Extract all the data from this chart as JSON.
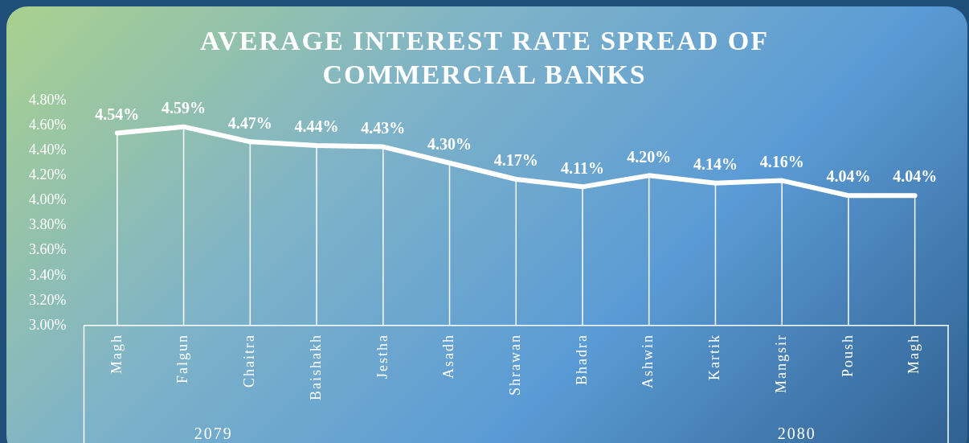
{
  "chart_data": {
    "type": "line",
    "title": "AVERAGE INTEREST RATE SPREAD OF COMMERCIAL BANKS",
    "categories": [
      "Magh",
      "Falgun",
      "Chaitra",
      "Baishakh",
      "Jestha",
      "Asadh",
      "Shrawan",
      "Bhadra",
      "Ashwin",
      "Kartik",
      "Mangsir",
      "Poush",
      "Magh"
    ],
    "values": [
      4.54,
      4.59,
      4.47,
      4.44,
      4.43,
      4.3,
      4.17,
      4.11,
      4.2,
      4.14,
      4.16,
      4.04,
      4.04
    ],
    "value_labels": [
      "4.54%",
      "4.59%",
      "4.47%",
      "4.44%",
      "4.43%",
      "4.30%",
      "4.17%",
      "4.11%",
      "4.20%",
      "4.14%",
      "4.16%",
      "4.04%",
      "4.04%"
    ],
    "color": "#ffffff",
    "ylim": [
      3.0,
      4.8
    ],
    "yticks": [
      {
        "value": 3.0,
        "label": "3.00%"
      },
      {
        "value": 3.2,
        "label": "3.20%"
      },
      {
        "value": 3.4,
        "label": "3.40%"
      },
      {
        "value": 3.6,
        "label": "3.60%"
      },
      {
        "value": 3.8,
        "label": "3.80%"
      },
      {
        "value": 4.0,
        "label": "4.00%"
      },
      {
        "value": 4.2,
        "label": "4.20%"
      },
      {
        "value": 4.4,
        "label": "4.40%"
      },
      {
        "value": 4.6,
        "label": "4.60%"
      },
      {
        "value": 4.8,
        "label": "4.80%"
      }
    ],
    "annotations": [
      "2079",
      "2080"
    ],
    "grid": "x",
    "legend": false,
    "marker": "none",
    "line_style": "solid"
  }
}
